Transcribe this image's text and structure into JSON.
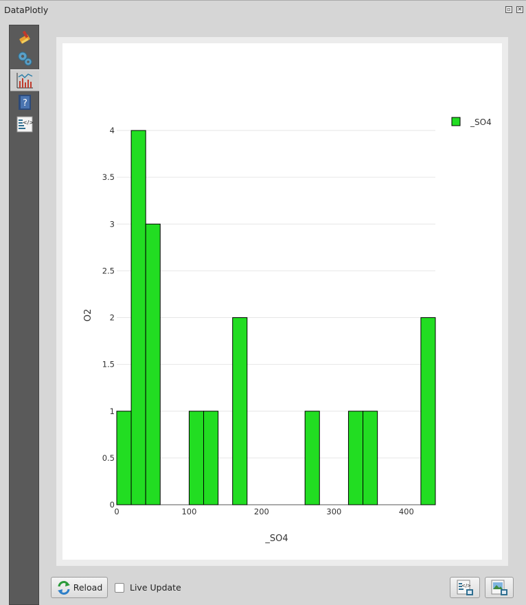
{
  "window": {
    "title": "DataPlotly",
    "float_icon": "float-icon",
    "close_icon": "close-icon"
  },
  "sidebar": {
    "items": [
      {
        "icon": "paint-brush-icon",
        "active": false
      },
      {
        "icon": "gears-icon",
        "active": false
      },
      {
        "icon": "plot-chart-icon",
        "active": true
      },
      {
        "icon": "help-book-icon",
        "active": false
      },
      {
        "icon": "code-view-icon",
        "active": false
      }
    ]
  },
  "chart_data": {
    "type": "bar",
    "xlabel": "_SO4",
    "ylabel": "O2",
    "xlim": [
      0,
      440
    ],
    "ylim": [
      0,
      4
    ],
    "xticks": [
      0,
      100,
      200,
      300,
      400
    ],
    "yticks": [
      0,
      0.5,
      1,
      1.5,
      2,
      2.5,
      3,
      3.5,
      4
    ],
    "grid": true,
    "legend_position": "top-right",
    "bar_color": "#22dd22",
    "bar_edge": "#000000",
    "bin_width": 20,
    "series": [
      {
        "name": "_SO4",
        "bins": [
          {
            "x0": 0,
            "x1": 20,
            "value": 1
          },
          {
            "x0": 20,
            "x1": 40,
            "value": 4
          },
          {
            "x0": 40,
            "x1": 60,
            "value": 3
          },
          {
            "x0": 100,
            "x1": 120,
            "value": 1
          },
          {
            "x0": 120,
            "x1": 140,
            "value": 1
          },
          {
            "x0": 160,
            "x1": 180,
            "value": 2
          },
          {
            "x0": 260,
            "x1": 280,
            "value": 1
          },
          {
            "x0": 320,
            "x1": 340,
            "value": 1
          },
          {
            "x0": 340,
            "x1": 360,
            "value": 1
          },
          {
            "x0": 420,
            "x1": 440,
            "value": 2
          }
        ]
      }
    ]
  },
  "bottom": {
    "reload_label": "Reload",
    "reload_icon": "reload-icon",
    "live_update_label": "Live Update",
    "live_update_checked": false,
    "export_html_icon": "export-html-icon",
    "export_image_icon": "export-image-icon"
  }
}
